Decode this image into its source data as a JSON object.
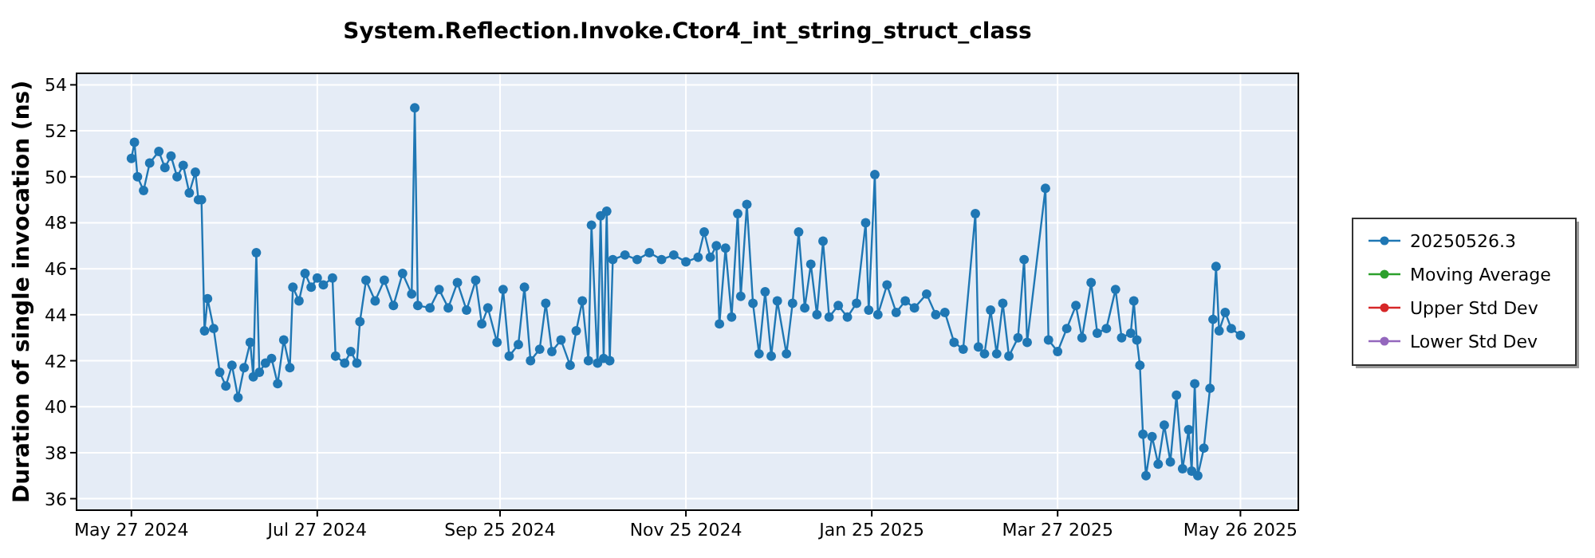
{
  "chart_data": {
    "type": "line",
    "title": "System.Reflection.Invoke.Ctor4_int_string_struct_class",
    "ylabel": "Duration of single invocation (ns)",
    "xlim": [
      "2024-05-09",
      "2025-06-14"
    ],
    "ylim": [
      35.5,
      54.5
    ],
    "xticks": [
      {
        "value": "2024-05-27",
        "label": "May 27 2024"
      },
      {
        "value": "2024-07-27",
        "label": "Jul 27 2024"
      },
      {
        "value": "2024-09-25",
        "label": "Sep 25 2024"
      },
      {
        "value": "2024-11-25",
        "label": "Nov 25 2024"
      },
      {
        "value": "2025-01-25",
        "label": "Jan 25 2025"
      },
      {
        "value": "2025-03-27",
        "label": "Mar 27 2025"
      },
      {
        "value": "2025-05-26",
        "label": "May 26 2025"
      }
    ],
    "yticks": [
      36,
      38,
      40,
      42,
      44,
      46,
      48,
      50,
      52,
      54
    ],
    "grid": true,
    "legend": "right",
    "marker": "circle",
    "line_style": "solid",
    "series": [
      {
        "name": "20250526.3",
        "color": "#1f77b4",
        "x": [
          "2024-05-27",
          "2024-05-28",
          "2024-05-29",
          "2024-05-31",
          "2024-06-02",
          "2024-06-05",
          "2024-06-07",
          "2024-06-09",
          "2024-06-11",
          "2024-06-13",
          "2024-06-15",
          "2024-06-17",
          "2024-06-18",
          "2024-06-19",
          "2024-06-20",
          "2024-06-21",
          "2024-06-23",
          "2024-06-25",
          "2024-06-27",
          "2024-06-29",
          "2024-07-01",
          "2024-07-03",
          "2024-07-05",
          "2024-07-06",
          "2024-07-07",
          "2024-07-08",
          "2024-07-10",
          "2024-07-12",
          "2024-07-14",
          "2024-07-16",
          "2024-07-18",
          "2024-07-19",
          "2024-07-21",
          "2024-07-23",
          "2024-07-25",
          "2024-07-27",
          "2024-07-29",
          "2024-08-01",
          "2024-08-02",
          "2024-08-05",
          "2024-08-07",
          "2024-08-09",
          "2024-08-10",
          "2024-08-12",
          "2024-08-15",
          "2024-08-18",
          "2024-08-21",
          "2024-08-24",
          "2024-08-27",
          "2024-08-28",
          "2024-08-29",
          "2024-09-02",
          "2024-09-05",
          "2024-09-08",
          "2024-09-11",
          "2024-09-14",
          "2024-09-17",
          "2024-09-19",
          "2024-09-21",
          "2024-09-24",
          "2024-09-26",
          "2024-09-28",
          "2024-10-01",
          "2024-10-03",
          "2024-10-05",
          "2024-10-08",
          "2024-10-10",
          "2024-10-12",
          "2024-10-15",
          "2024-10-18",
          "2024-10-20",
          "2024-10-22",
          "2024-10-24",
          "2024-10-25",
          "2024-10-27",
          "2024-10-28",
          "2024-10-29",
          "2024-10-30",
          "2024-10-31",
          "2024-11-01",
          "2024-11-05",
          "2024-11-09",
          "2024-11-13",
          "2024-11-17",
          "2024-11-21",
          "2024-11-25",
          "2024-11-29",
          "2024-12-01",
          "2024-12-03",
          "2024-12-05",
          "2024-12-06",
          "2024-12-08",
          "2024-12-10",
          "2024-12-12",
          "2024-12-13",
          "2024-12-15",
          "2024-12-17",
          "2024-12-19",
          "2024-12-21",
          "2024-12-23",
          "2024-12-25",
          "2024-12-28",
          "2024-12-30",
          "2025-01-01",
          "2025-01-03",
          "2025-01-05",
          "2025-01-07",
          "2025-01-09",
          "2025-01-11",
          "2025-01-14",
          "2025-01-17",
          "2025-01-20",
          "2025-01-23",
          "2025-01-24",
          "2025-01-26",
          "2025-01-27",
          "2025-01-30",
          "2025-02-02",
          "2025-02-05",
          "2025-02-08",
          "2025-02-12",
          "2025-02-15",
          "2025-02-18",
          "2025-02-21",
          "2025-02-24",
          "2025-02-28",
          "2025-03-01",
          "2025-03-03",
          "2025-03-05",
          "2025-03-07",
          "2025-03-09",
          "2025-03-11",
          "2025-03-14",
          "2025-03-16",
          "2025-03-17",
          "2025-03-23",
          "2025-03-24",
          "2025-03-27",
          "2025-03-30",
          "2025-04-02",
          "2025-04-04",
          "2025-04-07",
          "2025-04-09",
          "2025-04-12",
          "2025-04-15",
          "2025-04-17",
          "2025-04-20",
          "2025-04-21",
          "2025-04-22",
          "2025-04-23",
          "2025-04-24",
          "2025-04-25",
          "2025-04-27",
          "2025-04-29",
          "2025-05-01",
          "2025-05-03",
          "2025-05-05",
          "2025-05-07",
          "2025-05-09",
          "2025-05-10",
          "2025-05-11",
          "2025-05-12",
          "2025-05-14",
          "2025-05-16",
          "2025-05-17",
          "2025-05-18",
          "2025-05-19",
          "2025-05-21",
          "2025-05-23",
          "2025-05-26"
        ],
        "values": [
          50.8,
          51.5,
          50.0,
          49.4,
          50.6,
          51.1,
          50.4,
          50.9,
          50.0,
          50.5,
          49.3,
          50.2,
          49.0,
          49.0,
          43.3,
          44.7,
          43.4,
          41.5,
          40.9,
          41.8,
          40.4,
          41.7,
          42.8,
          41.3,
          46.7,
          41.5,
          41.9,
          42.1,
          41.0,
          42.9,
          41.7,
          45.2,
          44.6,
          45.8,
          45.2,
          45.6,
          45.3,
          45.6,
          42.2,
          41.9,
          42.4,
          41.9,
          43.7,
          45.5,
          44.6,
          45.5,
          44.4,
          45.8,
          44.9,
          53.0,
          44.4,
          44.3,
          45.1,
          44.3,
          45.4,
          44.2,
          45.5,
          43.6,
          44.3,
          42.8,
          45.1,
          42.2,
          42.7,
          45.2,
          42.0,
          42.5,
          44.5,
          42.4,
          42.9,
          41.8,
          43.3,
          44.6,
          42.0,
          47.9,
          41.9,
          48.3,
          42.1,
          48.5,
          42.0,
          46.4,
          46.6,
          46.4,
          46.7,
          46.4,
          46.6,
          46.3,
          46.5,
          47.6,
          46.5,
          47.0,
          43.6,
          46.9,
          43.9,
          48.4,
          44.8,
          48.8,
          44.5,
          42.3,
          45.0,
          42.2,
          44.6,
          42.3,
          44.5,
          47.6,
          44.3,
          46.2,
          44.0,
          47.2,
          43.9,
          44.4,
          43.9,
          44.5,
          48.0,
          44.2,
          50.1,
          44.0,
          45.3,
          44.1,
          44.6,
          44.3,
          44.9,
          44.0,
          44.1,
          42.8,
          42.5,
          48.4,
          42.6,
          42.3,
          44.2,
          42.3,
          44.5,
          42.2,
          43.0,
          46.4,
          42.8,
          49.5,
          42.9,
          42.4,
          43.4,
          44.4,
          43.0,
          45.4,
          43.2,
          43.4,
          45.1,
          43.0,
          43.2,
          44.6,
          42.9,
          41.8,
          38.8,
          37.0,
          38.7,
          37.5,
          39.2,
          37.6,
          40.5,
          37.3,
          39.0,
          37.2,
          41.0,
          37.0,
          38.2,
          40.8,
          43.8,
          46.1,
          43.3,
          44.1,
          43.4,
          43.1
        ]
      },
      {
        "name": "Moving Average",
        "color": "#2ca02c"
      },
      {
        "name": "Upper Std Dev",
        "color": "#d62728"
      },
      {
        "name": "Lower Std Dev",
        "color": "#9467bd"
      }
    ]
  }
}
